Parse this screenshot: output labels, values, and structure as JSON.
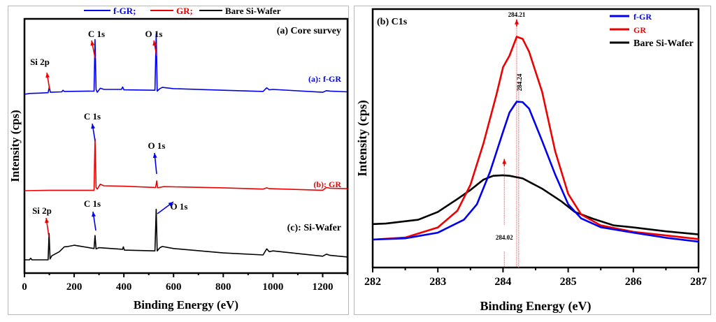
{
  "chart_data": [
    {
      "type": "line",
      "panel_label": "(a) Core survey",
      "xlabel": "Binding Energy (eV)",
      "ylabel": "Intensity (cps)",
      "xlim": [
        0,
        1300
      ],
      "x_ticks": [
        0,
        200,
        400,
        600,
        800,
        1000,
        1200
      ],
      "y_ticks_shown": false,
      "legend": {
        "placement": "top-center-outside",
        "entries": [
          {
            "label": "f-GR;",
            "color": "#0000ee"
          },
          {
            "label": "GR;",
            "color": "#ee0000"
          },
          {
            "label": "Bare Si-Wafer",
            "color": "#000000"
          }
        ]
      },
      "series": [
        {
          "name": "f-GR",
          "label": "(a): f-GR",
          "color": "#0000ee",
          "offset": 2.0,
          "points": [
            [
              0,
              0.0
            ],
            [
              20,
              0.02
            ],
            [
              60,
              0.03
            ],
            [
              95,
              0.04
            ],
            [
              100,
              0.18
            ],
            [
              104,
              0.05
            ],
            [
              150,
              0.06
            ],
            [
              155,
              0.1
            ],
            [
              160,
              0.07
            ],
            [
              280,
              0.08
            ],
            [
              284,
              1.35
            ],
            [
              288,
              0.12
            ],
            [
              293,
              0.05
            ],
            [
              305,
              0.15
            ],
            [
              320,
              0.12
            ],
            [
              390,
              0.12
            ],
            [
              395,
              0.18
            ],
            [
              400,
              0.11
            ],
            [
              525,
              0.1
            ],
            [
              530,
              1.5
            ],
            [
              534,
              0.08
            ],
            [
              545,
              0.14
            ],
            [
              555,
              0.17
            ],
            [
              600,
              0.14
            ],
            [
              800,
              0.1
            ],
            [
              960,
              0.07
            ],
            [
              975,
              0.16
            ],
            [
              985,
              0.11
            ],
            [
              1000,
              0.12
            ],
            [
              1200,
              0.05
            ],
            [
              1215,
              0.09
            ],
            [
              1230,
              0.08
            ],
            [
              1300,
              0.06
            ]
          ],
          "annotations": [
            {
              "text": "Si 2p",
              "x": 100,
              "arrow_color": "#ee0000"
            },
            {
              "text": "C 1s",
              "x": 284,
              "arrow_color": "#ee0000"
            },
            {
              "text": "O 1s",
              "x": 532,
              "arrow_color": "#ee0000"
            }
          ]
        },
        {
          "name": "GR",
          "label": "(b): GR",
          "color": "#ee0000",
          "offset": 1.0,
          "points": [
            [
              0,
              0.0
            ],
            [
              100,
              0.01
            ],
            [
              280,
              0.01
            ],
            [
              284,
              1.28
            ],
            [
              288,
              0.08
            ],
            [
              293,
              0.04
            ],
            [
              305,
              0.16
            ],
            [
              320,
              0.12
            ],
            [
              400,
              0.11
            ],
            [
              528,
              0.08
            ],
            [
              532,
              0.24
            ],
            [
              536,
              0.07
            ],
            [
              560,
              0.1
            ],
            [
              800,
              0.07
            ],
            [
              960,
              0.04
            ],
            [
              975,
              0.07
            ],
            [
              985,
              0.05
            ],
            [
              1200,
              0.01
            ],
            [
              1215,
              0.08
            ],
            [
              1230,
              0.06
            ],
            [
              1300,
              0.05
            ]
          ],
          "annotations": [
            {
              "text": "C 1s",
              "x": 284,
              "arrow_color": "#0000ee"
            },
            {
              "text": "O 1s",
              "x": 532,
              "arrow_color": "#0000ee"
            }
          ]
        },
        {
          "name": "Bare Si-Wafer",
          "label": "(c): Si-Wafer",
          "color": "#000000",
          "offset": 0.0,
          "points": [
            [
              0,
              0.0
            ],
            [
              20,
              0.0
            ],
            [
              25,
              0.04
            ],
            [
              30,
              0.0
            ],
            [
              95,
              0.0
            ],
            [
              99,
              0.65
            ],
            [
              103,
              0.02
            ],
            [
              110,
              0.1
            ],
            [
              140,
              0.2
            ],
            [
              160,
              0.32
            ],
            [
              175,
              0.33
            ],
            [
              200,
              0.36
            ],
            [
              280,
              0.28
            ],
            [
              284,
              0.6
            ],
            [
              288,
              0.27
            ],
            [
              300,
              0.3
            ],
            [
              395,
              0.26
            ],
            [
              398,
              0.32
            ],
            [
              402,
              0.24
            ],
            [
              525,
              0.22
            ],
            [
              530,
              1.25
            ],
            [
              534,
              0.22
            ],
            [
              545,
              0.3
            ],
            [
              555,
              0.33
            ],
            [
              600,
              0.28
            ],
            [
              800,
              0.17
            ],
            [
              960,
              0.12
            ],
            [
              975,
              0.27
            ],
            [
              985,
              0.2
            ],
            [
              1000,
              0.22
            ],
            [
              1200,
              0.09
            ],
            [
              1215,
              0.14
            ],
            [
              1230,
              0.11
            ],
            [
              1300,
              0.07
            ]
          ],
          "annotations": [
            {
              "text": "Si 2p",
              "x": 99,
              "arrow_color": "#ee0000"
            },
            {
              "text": "C 1s",
              "x": 284,
              "arrow_color": "#0000ee"
            },
            {
              "text": "O 1s",
              "x": 530,
              "arrow_color": "#0000ee"
            }
          ]
        }
      ]
    },
    {
      "type": "line",
      "panel_label": "(b) C1s",
      "xlabel": "Binding Energy (eV)",
      "ylabel": "Intensity (cps)",
      "xlim": [
        282,
        287
      ],
      "ylim": [
        0,
        1.0
      ],
      "x_ticks": [
        282,
        283,
        284,
        285,
        286,
        287
      ],
      "y_ticks_shown": false,
      "legend": {
        "placement": "top-right",
        "entries": [
          {
            "label": "f-GR",
            "color": "#0000ee"
          },
          {
            "label": "GR",
            "color": "#ee0000"
          },
          {
            "label": "Bare Si-Wafer",
            "color": "#000000"
          }
        ]
      },
      "series": [
        {
          "name": "f-GR",
          "color": "#0000ee",
          "points": [
            [
              282,
              0.108
            ],
            [
              282.5,
              0.113
            ],
            [
              283,
              0.135
            ],
            [
              283.4,
              0.185
            ],
            [
              283.6,
              0.245
            ],
            [
              283.8,
              0.37
            ],
            [
              284,
              0.525
            ],
            [
              284.1,
              0.6
            ],
            [
              284.21,
              0.642
            ],
            [
              284.3,
              0.64
            ],
            [
              284.4,
              0.615
            ],
            [
              284.6,
              0.49
            ],
            [
              284.8,
              0.36
            ],
            [
              285,
              0.245
            ],
            [
              285.2,
              0.19
            ],
            [
              285.5,
              0.156
            ],
            [
              286,
              0.135
            ],
            [
              286.5,
              0.115
            ],
            [
              287,
              0.1
            ]
          ]
        },
        {
          "name": "GR",
          "color": "#ee0000",
          "points": [
            [
              282,
              0.108
            ],
            [
              282.5,
              0.116
            ],
            [
              283,
              0.155
            ],
            [
              283.3,
              0.22
            ],
            [
              283.5,
              0.32
            ],
            [
              283.7,
              0.48
            ],
            [
              283.9,
              0.67
            ],
            [
              284,
              0.775
            ],
            [
              284.1,
              0.82
            ],
            [
              284.21,
              0.893
            ],
            [
              284.3,
              0.885
            ],
            [
              284.4,
              0.835
            ],
            [
              284.6,
              0.68
            ],
            [
              284.8,
              0.45
            ],
            [
              285,
              0.285
            ],
            [
              285.2,
              0.205
            ],
            [
              285.5,
              0.163
            ],
            [
              286,
              0.138
            ],
            [
              286.5,
              0.124
            ],
            [
              287,
              0.11
            ]
          ]
        },
        {
          "name": "Bare Si-Wafer",
          "color": "#000000",
          "points": [
            [
              282,
              0.168
            ],
            [
              282.2,
              0.17
            ],
            [
              282.7,
              0.185
            ],
            [
              283,
              0.215
            ],
            [
              283.3,
              0.265
            ],
            [
              283.5,
              0.3
            ],
            [
              283.7,
              0.34
            ],
            [
              283.85,
              0.355
            ],
            [
              284,
              0.357
            ],
            [
              284.1,
              0.355
            ],
            [
              284.3,
              0.345
            ],
            [
              284.6,
              0.305
            ],
            [
              284.9,
              0.255
            ],
            [
              285.1,
              0.215
            ],
            [
              285.4,
              0.187
            ],
            [
              285.7,
              0.163
            ],
            [
              286,
              0.155
            ],
            [
              286.5,
              0.14
            ],
            [
              287,
              0.128
            ]
          ]
        }
      ],
      "annotations": [
        {
          "text": "284.21",
          "x": 284.21,
          "note": "GR peak position, arrow up"
        },
        {
          "text": "284.24",
          "x": 284.24,
          "note": "f-GR peak position, vertical text"
        },
        {
          "text": "284.02",
          "x": 284.02,
          "note": "Bare Si-Wafer peak position, arrow up"
        }
      ]
    }
  ]
}
